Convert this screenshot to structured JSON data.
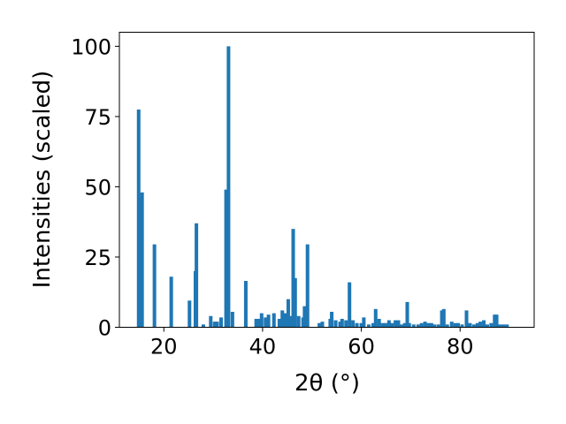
{
  "chart_data": {
    "type": "bar",
    "xlabel": "2θ (°)",
    "ylabel": "Intensities (scaled)",
    "xlim": [
      11,
      95
    ],
    "ylim": [
      0,
      105
    ],
    "xticks": [
      20,
      40,
      60,
      80
    ],
    "yticks": [
      0,
      25,
      50,
      75,
      100
    ],
    "grid": false,
    "bar_color": "#1f77b4",
    "bars": [
      {
        "x": 14.9,
        "y": 77.5
      },
      {
        "x": 15.3,
        "y": 46
      },
      {
        "x": 15.6,
        "y": 48
      },
      {
        "x": 18.1,
        "y": 29.5
      },
      {
        "x": 21.5,
        "y": 18
      },
      {
        "x": 25.2,
        "y": 9.5
      },
      {
        "x": 26.4,
        "y": 20
      },
      {
        "x": 26.6,
        "y": 37
      },
      {
        "x": 28.0,
        "y": 1
      },
      {
        "x": 29.5,
        "y": 4
      },
      {
        "x": 30.3,
        "y": 2
      },
      {
        "x": 30.8,
        "y": 2
      },
      {
        "x": 31.6,
        "y": 3.5
      },
      {
        "x": 32.6,
        "y": 49
      },
      {
        "x": 33.1,
        "y": 100
      },
      {
        "x": 33.9,
        "y": 5.5
      },
      {
        "x": 36.6,
        "y": 16.5
      },
      {
        "x": 38.7,
        "y": 3
      },
      {
        "x": 39.3,
        "y": 3
      },
      {
        "x": 39.8,
        "y": 5
      },
      {
        "x": 40.6,
        "y": 3.5
      },
      {
        "x": 41.2,
        "y": 4.5
      },
      {
        "x": 42.3,
        "y": 5
      },
      {
        "x": 43.4,
        "y": 3
      },
      {
        "x": 44.0,
        "y": 6
      },
      {
        "x": 44.6,
        "y": 5
      },
      {
        "x": 45.2,
        "y": 10
      },
      {
        "x": 45.7,
        "y": 4
      },
      {
        "x": 46.2,
        "y": 35
      },
      {
        "x": 46.6,
        "y": 17.5
      },
      {
        "x": 47.3,
        "y": 4
      },
      {
        "x": 48.2,
        "y": 3.5
      },
      {
        "x": 48.5,
        "y": 7.5
      },
      {
        "x": 49.1,
        "y": 29.5
      },
      {
        "x": 51.5,
        "y": 1.5
      },
      {
        "x": 52.1,
        "y": 2
      },
      {
        "x": 53.7,
        "y": 3
      },
      {
        "x": 54.0,
        "y": 5.5
      },
      {
        "x": 54.8,
        "y": 2.5
      },
      {
        "x": 55.7,
        "y": 2
      },
      {
        "x": 56.1,
        "y": 3
      },
      {
        "x": 56.9,
        "y": 2.5
      },
      {
        "x": 57.6,
        "y": 16
      },
      {
        "x": 58.3,
        "y": 2.5
      },
      {
        "x": 59.1,
        "y": 1.5
      },
      {
        "x": 60.0,
        "y": 1.5
      },
      {
        "x": 60.5,
        "y": 3.5
      },
      {
        "x": 61.5,
        "y": 1
      },
      {
        "x": 62.4,
        "y": 1.5
      },
      {
        "x": 62.9,
        "y": 6.5
      },
      {
        "x": 63.6,
        "y": 3
      },
      {
        "x": 64.3,
        "y": 1.5
      },
      {
        "x": 64.9,
        "y": 1.5
      },
      {
        "x": 65.6,
        "y": 2.5
      },
      {
        "x": 66.2,
        "y": 1.5
      },
      {
        "x": 66.9,
        "y": 2.5
      },
      {
        "x": 67.5,
        "y": 2.5
      },
      {
        "x": 68.2,
        "y": 1
      },
      {
        "x": 68.8,
        "y": 1.5
      },
      {
        "x": 69.3,
        "y": 9
      },
      {
        "x": 69.7,
        "y": 1.5
      },
      {
        "x": 70.6,
        "y": 1
      },
      {
        "x": 71.5,
        "y": 1
      },
      {
        "x": 72.2,
        "y": 1.5
      },
      {
        "x": 72.9,
        "y": 2
      },
      {
        "x": 73.6,
        "y": 1.5
      },
      {
        "x": 74.2,
        "y": 1.5
      },
      {
        "x": 74.8,
        "y": 1
      },
      {
        "x": 75.6,
        "y": 1
      },
      {
        "x": 76.3,
        "y": 6
      },
      {
        "x": 76.7,
        "y": 6.5
      },
      {
        "x": 77.4,
        "y": 1
      },
      {
        "x": 78.3,
        "y": 2
      },
      {
        "x": 79.0,
        "y": 1.5
      },
      {
        "x": 79.6,
        "y": 1.5
      },
      {
        "x": 80.4,
        "y": 1
      },
      {
        "x": 81.3,
        "y": 6
      },
      {
        "x": 82.0,
        "y": 1.5
      },
      {
        "x": 82.8,
        "y": 1
      },
      {
        "x": 83.5,
        "y": 1.5
      },
      {
        "x": 84.1,
        "y": 2
      },
      {
        "x": 84.8,
        "y": 2.5
      },
      {
        "x": 85.5,
        "y": 1
      },
      {
        "x": 86.3,
        "y": 1.5
      },
      {
        "x": 87.0,
        "y": 4.5
      },
      {
        "x": 87.4,
        "y": 4.5
      },
      {
        "x": 88.1,
        "y": 1
      },
      {
        "x": 88.8,
        "y": 1
      },
      {
        "x": 89.5,
        "y": 1
      }
    ]
  }
}
